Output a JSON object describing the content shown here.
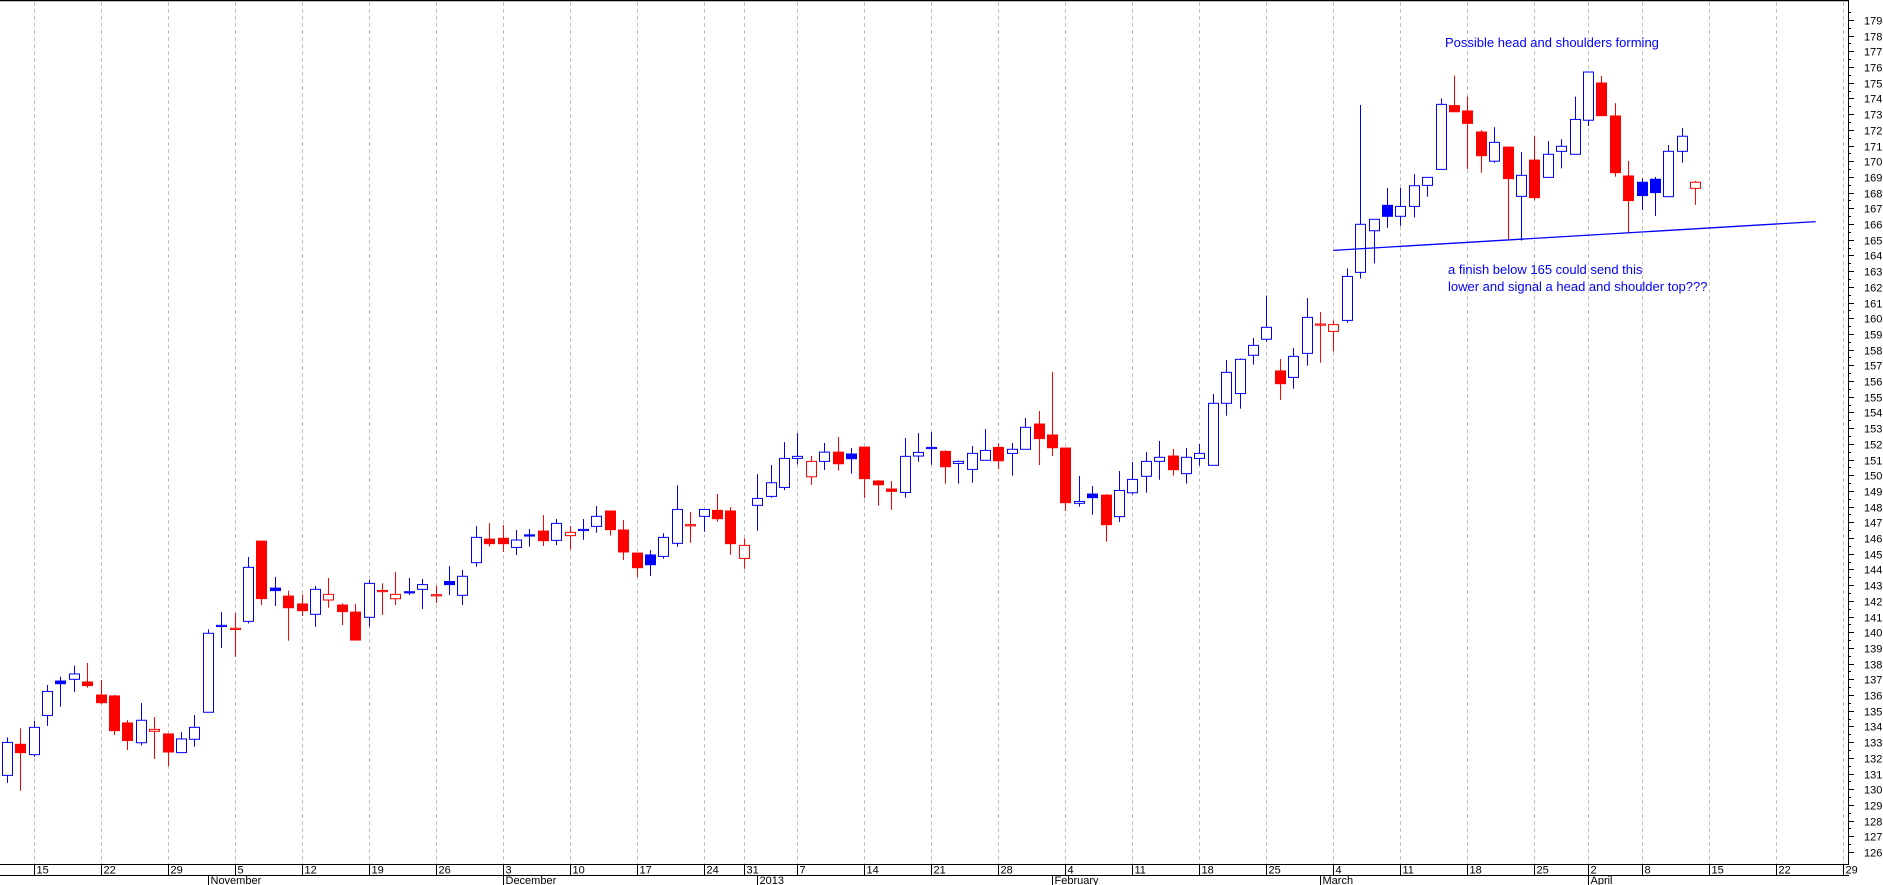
{
  "chart_data": {
    "type": "candlestick",
    "title": "",
    "xlabel": "",
    "ylabel": "",
    "ylim": [
      125.5,
      180.5
    ],
    "grid": {
      "vertical": true,
      "horizontal": false
    },
    "colors": {
      "up": "#0000ff",
      "down": "#ff0000",
      "trendline": "#0000ff",
      "grid": "#c0c0c0",
      "axis": "#000000"
    },
    "candle_fields": [
      "date",
      "open",
      "high",
      "low",
      "close",
      "style"
    ],
    "candles": [
      [
        "2012-10-11",
        130.88,
        133.3,
        130.4,
        132.98,
        "hb"
      ],
      [
        "2012-10-12",
        132.86,
        133.88,
        129.9,
        132.33,
        "fr"
      ],
      [
        "2012-10-15",
        132.2,
        134.36,
        132.07,
        133.94,
        "hb"
      ],
      [
        "2012-10-16",
        134.7,
        136.64,
        134.03,
        136.23,
        "hb"
      ],
      [
        "2012-10-17",
        136.89,
        137.17,
        135.26,
        136.72,
        "fb"
      ],
      [
        "2012-10-18",
        137.0,
        137.87,
        136.19,
        137.34,
        "hb"
      ],
      [
        "2012-10-19",
        136.83,
        138.04,
        136.47,
        136.6,
        "fr"
      ],
      [
        "2012-10-22",
        136.0,
        136.95,
        135.43,
        135.51,
        "fr"
      ],
      [
        "2012-10-23",
        135.94,
        136.0,
        133.45,
        133.73,
        "fr"
      ],
      [
        "2012-10-24",
        134.22,
        134.4,
        132.5,
        133.1,
        "fr"
      ],
      [
        "2012-10-25",
        132.96,
        135.49,
        132.8,
        134.39,
        "hb"
      ],
      [
        "2012-10-26",
        133.69,
        134.6,
        131.92,
        133.81,
        "hr"
      ],
      [
        "2012-10-29",
        133.52,
        133.52,
        131.48,
        132.37,
        "fr"
      ],
      [
        "2012-10-30",
        132.33,
        133.64,
        132.33,
        133.2,
        "hb"
      ],
      [
        "2012-10-31",
        133.18,
        134.73,
        132.71,
        133.94,
        "hb"
      ],
      [
        "2012-11-01",
        134.9,
        140.18,
        134.9,
        139.93,
        "hb"
      ],
      [
        "2012-11-02",
        140.44,
        141.29,
        139.0,
        140.44,
        "hb"
      ],
      [
        "2012-11-05",
        140.25,
        141.22,
        138.44,
        140.25,
        "hr"
      ],
      [
        "2012-11-06",
        140.69,
        144.79,
        140.56,
        144.13,
        "hb"
      ],
      [
        "2012-11-07",
        145.8,
        145.8,
        141.73,
        142.14,
        "fr"
      ],
      [
        "2012-11-08",
        142.81,
        143.52,
        141.67,
        142.65,
        "fb"
      ],
      [
        "2012-11-09",
        142.3,
        142.65,
        139.46,
        141.56,
        "fr"
      ],
      [
        "2012-11-12",
        141.8,
        142.39,
        141.03,
        141.37,
        "fr"
      ],
      [
        "2012-11-13",
        141.14,
        142.94,
        140.35,
        142.73,
        "hb"
      ],
      [
        "2012-11-14",
        142.05,
        143.45,
        141.56,
        142.41,
        "hr"
      ],
      [
        "2012-11-15",
        141.73,
        141.84,
        140.46,
        141.31,
        "fr"
      ],
      [
        "2012-11-16",
        141.28,
        141.8,
        139.46,
        139.5,
        "fr"
      ],
      [
        "2012-11-19",
        140.95,
        143.32,
        140.35,
        143.11,
        "hb"
      ],
      [
        "2012-11-20",
        142.66,
        143.11,
        141.1,
        142.66,
        "hr"
      ],
      [
        "2012-11-21",
        142.13,
        143.83,
        141.73,
        142.41,
        "hr"
      ],
      [
        "2012-11-22",
        142.58,
        143.45,
        142.37,
        142.58,
        "fb"
      ],
      [
        "2012-11-23",
        142.73,
        143.39,
        141.48,
        143.03,
        "hb"
      ],
      [
        "2012-11-26",
        142.39,
        142.94,
        141.86,
        142.39,
        "hr"
      ],
      [
        "2012-11-27",
        143.23,
        144.21,
        142.37,
        143.03,
        "fb"
      ],
      [
        "2012-11-28",
        142.35,
        143.96,
        141.73,
        143.56,
        "hb"
      ],
      [
        "2012-11-29",
        144.43,
        146.76,
        144.17,
        146.04,
        "hb"
      ],
      [
        "2012-11-30",
        145.93,
        146.95,
        145.45,
        145.64,
        "fr"
      ],
      [
        "2012-12-03",
        145.98,
        146.83,
        145.11,
        145.64,
        "fr"
      ],
      [
        "2012-12-04",
        145.4,
        146.51,
        144.92,
        145.87,
        "hb"
      ],
      [
        "2012-12-05",
        146.2,
        146.57,
        145.45,
        146.15,
        "fb"
      ],
      [
        "2012-12-06",
        146.44,
        147.46,
        145.49,
        145.83,
        "fr"
      ],
      [
        "2012-12-07",
        145.85,
        147.21,
        145.55,
        146.93,
        "hb"
      ],
      [
        "2012-12-10",
        146.15,
        146.76,
        145.26,
        146.36,
        "hr"
      ],
      [
        "2012-12-11",
        146.55,
        147.21,
        145.89,
        146.55,
        "hb"
      ],
      [
        "2012-12-12",
        146.74,
        148.04,
        146.34,
        147.38,
        "hb"
      ],
      [
        "2012-12-13",
        147.72,
        147.72,
        146.15,
        146.53,
        "fr"
      ],
      [
        "2012-12-14",
        146.51,
        147.14,
        144.6,
        145.11,
        "fr"
      ],
      [
        "2012-12-17",
        145.04,
        145.04,
        143.51,
        144.11,
        "fr"
      ],
      [
        "2012-12-18",
        144.92,
        145.23,
        143.58,
        144.3,
        "fb"
      ],
      [
        "2012-12-19",
        144.83,
        146.3,
        144.68,
        146.04,
        "hb"
      ],
      [
        "2012-12-20",
        145.66,
        149.35,
        145.44,
        147.82,
        "hb"
      ],
      [
        "2012-12-21",
        146.8,
        147.65,
        145.7,
        146.85,
        "hr"
      ],
      [
        "2012-12-24",
        147.38,
        147.82,
        146.4,
        147.82,
        "hb"
      ],
      [
        "2012-12-27",
        147.76,
        148.8,
        147.04,
        147.23,
        "fr"
      ],
      [
        "2012-12-28",
        147.72,
        147.97,
        144.93,
        145.64,
        "fr"
      ],
      [
        "2012-12-31",
        144.7,
        145.98,
        144.04,
        145.53,
        "hr"
      ],
      [
        "2013-01-02",
        148.08,
        150.07,
        146.46,
        148.52,
        "hb"
      ],
      [
        "2013-01-03",
        148.65,
        150.65,
        148.56,
        149.52,
        "hb"
      ],
      [
        "2013-01-04",
        149.22,
        152.11,
        149.05,
        151.07,
        "hb"
      ],
      [
        "2013-01-07",
        151.07,
        152.68,
        150.69,
        151.2,
        "hb"
      ],
      [
        "2013-01-08",
        149.9,
        151.22,
        149.39,
        150.88,
        "hr"
      ],
      [
        "2013-01-09",
        150.88,
        152.05,
        150.33,
        151.47,
        "hb"
      ],
      [
        "2013-01-10",
        151.47,
        152.43,
        150.29,
        150.73,
        "fr"
      ],
      [
        "2013-01-11",
        151.35,
        151.73,
        150.1,
        151.05,
        "fb"
      ],
      [
        "2013-01-14",
        151.79,
        151.79,
        148.54,
        149.78,
        "fr"
      ],
      [
        "2013-01-15",
        149.63,
        149.69,
        148.06,
        149.39,
        "fr"
      ],
      [
        "2013-01-16",
        149.12,
        149.63,
        147.8,
        148.97,
        "fr"
      ],
      [
        "2013-01-17",
        148.9,
        152.37,
        148.56,
        151.2,
        "hb"
      ],
      [
        "2013-01-18",
        151.22,
        152.68,
        150.86,
        151.45,
        "hb"
      ],
      [
        "2013-01-21",
        151.77,
        152.75,
        150.67,
        151.77,
        "hb"
      ],
      [
        "2013-01-22",
        151.52,
        151.58,
        149.46,
        150.54,
        "fr"
      ],
      [
        "2013-01-23",
        150.75,
        150.94,
        149.46,
        150.88,
        "hb"
      ],
      [
        "2013-01-24",
        150.37,
        151.86,
        149.52,
        151.39,
        "hb"
      ],
      [
        "2013-01-25",
        150.95,
        152.94,
        150.95,
        151.58,
        "hb"
      ],
      [
        "2013-01-28",
        151.77,
        152.03,
        150.39,
        150.92,
        "fr"
      ],
      [
        "2013-01-29",
        151.39,
        152.05,
        149.97,
        151.65,
        "hb"
      ],
      [
        "2013-01-30",
        151.65,
        153.64,
        151.65,
        153.05,
        "hb"
      ],
      [
        "2013-01-31",
        153.26,
        154.09,
        150.65,
        152.33,
        "fr"
      ],
      [
        "2013-02-01",
        152.56,
        156.57,
        151.22,
        151.75,
        "fr"
      ],
      [
        "2013-02-04",
        151.73,
        151.73,
        147.72,
        148.25,
        "fr"
      ],
      [
        "2013-02-05",
        148.21,
        149.95,
        148.0,
        148.33,
        "hb"
      ],
      [
        "2013-02-06",
        148.8,
        149.31,
        147.48,
        148.57,
        "fb"
      ],
      [
        "2013-02-07",
        148.73,
        148.8,
        145.77,
        146.85,
        "fr"
      ],
      [
        "2013-02-08",
        147.36,
        150.27,
        147.02,
        149.03,
        "hb"
      ],
      [
        "2013-02-11",
        148.88,
        150.84,
        148.76,
        149.73,
        "hb"
      ],
      [
        "2013-02-12",
        149.93,
        151.47,
        148.88,
        150.88,
        "hb"
      ],
      [
        "2013-02-13",
        150.88,
        152.18,
        149.71,
        151.14,
        "hb"
      ],
      [
        "2013-02-14",
        151.22,
        151.67,
        149.97,
        150.35,
        "fr"
      ],
      [
        "2013-02-15",
        150.1,
        151.73,
        149.46,
        151.14,
        "hb"
      ],
      [
        "2013-02-18",
        151.07,
        151.99,
        150.61,
        151.39,
        "hb"
      ],
      [
        "2013-02-19",
        150.63,
        155.17,
        150.63,
        154.58,
        "hb"
      ],
      [
        "2013-02-20",
        154.58,
        157.34,
        153.79,
        156.55,
        "hb"
      ],
      [
        "2013-02-21",
        155.2,
        157.44,
        154.24,
        157.38,
        "hb"
      ],
      [
        "2013-02-22",
        157.64,
        158.74,
        157.04,
        158.27,
        "hb"
      ],
      [
        "2013-02-25",
        158.66,
        161.44,
        158.51,
        159.42,
        "hb"
      ],
      [
        "2013-02-26",
        156.64,
        157.4,
        154.79,
        155.83,
        "fr"
      ],
      [
        "2013-02-27",
        156.23,
        158.1,
        155.51,
        157.57,
        "hb"
      ],
      [
        "2013-02-28",
        157.76,
        161.29,
        156.98,
        160.05,
        "hb"
      ],
      [
        "2013-03-01",
        159.63,
        160.39,
        157.17,
        159.63,
        "hr"
      ],
      [
        "2013-03-04",
        159.16,
        159.84,
        157.87,
        159.59,
        "hr"
      ],
      [
        "2013-03-05",
        159.86,
        163.17,
        159.71,
        162.66,
        "hb"
      ],
      [
        "2013-03-06",
        162.92,
        173.58,
        162.52,
        165.98,
        "hb"
      ],
      [
        "2013-03-07",
        165.57,
        166.3,
        163.49,
        166.3,
        "hb"
      ],
      [
        "2013-03-08",
        167.19,
        168.29,
        165.76,
        166.49,
        "fb"
      ],
      [
        "2013-03-11",
        166.49,
        168.29,
        165.89,
        167.12,
        "hb"
      ],
      [
        "2013-03-12",
        167.12,
        169.18,
        166.42,
        168.44,
        "hb"
      ],
      [
        "2013-03-13",
        168.46,
        168.97,
        167.74,
        168.97,
        "hb"
      ],
      [
        "2013-03-14",
        169.48,
        174.0,
        169.48,
        173.62,
        "hb"
      ],
      [
        "2013-03-15",
        173.54,
        175.45,
        173.15,
        173.15,
        "fr"
      ],
      [
        "2013-03-18",
        173.2,
        174.11,
        169.5,
        172.41,
        "fr"
      ],
      [
        "2013-03-19",
        171.86,
        171.98,
        169.27,
        170.35,
        "fr"
      ],
      [
        "2013-03-20",
        170.0,
        172.16,
        169.9,
        171.2,
        "hb"
      ],
      [
        "2013-03-21",
        170.9,
        170.9,
        164.94,
        168.89,
        "fr"
      ],
      [
        "2013-03-22",
        167.76,
        170.58,
        164.94,
        169.1,
        "hb"
      ],
      [
        "2013-03-25",
        170.07,
        171.6,
        167.53,
        167.68,
        "fr"
      ],
      [
        "2013-03-26",
        168.97,
        171.28,
        168.97,
        170.44,
        "hb"
      ],
      [
        "2013-03-27",
        170.63,
        171.39,
        169.54,
        170.95,
        "hb"
      ],
      [
        "2013-03-28",
        170.44,
        174.11,
        170.44,
        172.66,
        "hb"
      ],
      [
        "2013-04-02",
        172.61,
        175.68,
        172.24,
        175.68,
        "hb"
      ],
      [
        "2013-04-03",
        174.98,
        175.43,
        172.9,
        172.9,
        "fr"
      ],
      [
        "2013-04-04",
        172.88,
        173.69,
        169.02,
        169.27,
        "fr"
      ],
      [
        "2013-04-05",
        169.06,
        170.02,
        165.45,
        167.49,
        "fr"
      ],
      [
        "2013-04-08",
        168.66,
        168.91,
        166.89,
        167.81,
        "fb"
      ],
      [
        "2013-04-09",
        168.85,
        169.0,
        166.51,
        168.0,
        "fb"
      ],
      [
        "2013-04-10",
        167.74,
        171.03,
        167.74,
        170.63,
        "hb"
      ],
      [
        "2013-04-11",
        170.63,
        172.12,
        169.91,
        171.59,
        "hb"
      ],
      [
        "2013-04-12",
        168.27,
        168.74,
        167.23,
        168.66,
        "hr"
      ]
    ],
    "trendline": {
      "start": {
        "date": "2013-03-04",
        "price": 164.32
      },
      "end": {
        "date": "2013-04-25",
        "price": 166.15
      }
    },
    "y_ticks": [
      126,
      127,
      128,
      129,
      130,
      131,
      132,
      133,
      134,
      135,
      136,
      137,
      138,
      139,
      140,
      141,
      142,
      143,
      144,
      145,
      146,
      147,
      148,
      149,
      150,
      151,
      152,
      153,
      154,
      155,
      156,
      157,
      158,
      159,
      160,
      161,
      162,
      163,
      164,
      165,
      166,
      167,
      168,
      169,
      170,
      171,
      172,
      173,
      174,
      175,
      176,
      177,
      178,
      179
    ],
    "x_ticks": [
      {
        "date": "2012-10-15",
        "label": "15"
      },
      {
        "date": "2012-10-22",
        "label": "22"
      },
      {
        "date": "2012-10-29",
        "label": "29"
      },
      {
        "date": "2012-11-05",
        "label": "5"
      },
      {
        "date": "2012-11-12",
        "label": "12"
      },
      {
        "date": "2012-11-19",
        "label": "19"
      },
      {
        "date": "2012-11-26",
        "label": "26"
      },
      {
        "date": "2012-12-03",
        "label": "3"
      },
      {
        "date": "2012-12-10",
        "label": "10"
      },
      {
        "date": "2012-12-17",
        "label": "17"
      },
      {
        "date": "2012-12-24",
        "label": "24"
      },
      {
        "date": "2012-12-31",
        "label": "31"
      },
      {
        "date": "2013-01-07",
        "label": "7"
      },
      {
        "date": "2013-01-14",
        "label": "14"
      },
      {
        "date": "2013-01-21",
        "label": "21"
      },
      {
        "date": "2013-01-28",
        "label": "28"
      },
      {
        "date": "2013-02-04",
        "label": "4"
      },
      {
        "date": "2013-02-11",
        "label": "11"
      },
      {
        "date": "2013-02-18",
        "label": "18"
      },
      {
        "date": "2013-02-25",
        "label": "25"
      },
      {
        "date": "2013-03-04",
        "label": "4"
      },
      {
        "date": "2013-03-11",
        "label": "11"
      },
      {
        "date": "2013-03-18",
        "label": "18"
      },
      {
        "date": "2013-03-25",
        "label": "25"
      },
      {
        "date": "2013-04-02",
        "label": "2"
      },
      {
        "date": "2013-04-08",
        "label": "8"
      },
      {
        "date": "2013-04-15",
        "label": "15"
      },
      {
        "date": "2013-04-22",
        "label": "22"
      },
      {
        "date": "2013-04-29",
        "label": "29"
      }
    ],
    "month_labels": [
      {
        "date": "2012-11-01",
        "label": "November"
      },
      {
        "date": "2012-12-03",
        "label": "December"
      },
      {
        "date": "2013-01-02",
        "label": "2013"
      },
      {
        "date": "2013-02-01",
        "label": "February"
      },
      {
        "date": "2013-03-01",
        "label": "March"
      },
      {
        "date": "2013-04-02",
        "label": "April"
      }
    ],
    "annotations": {
      "top": "Possible head and shoulders forming",
      "neckline_line1": "a finish below 165 could send this",
      "neckline_line2": "lower and signal a head and shoulder top???"
    }
  }
}
